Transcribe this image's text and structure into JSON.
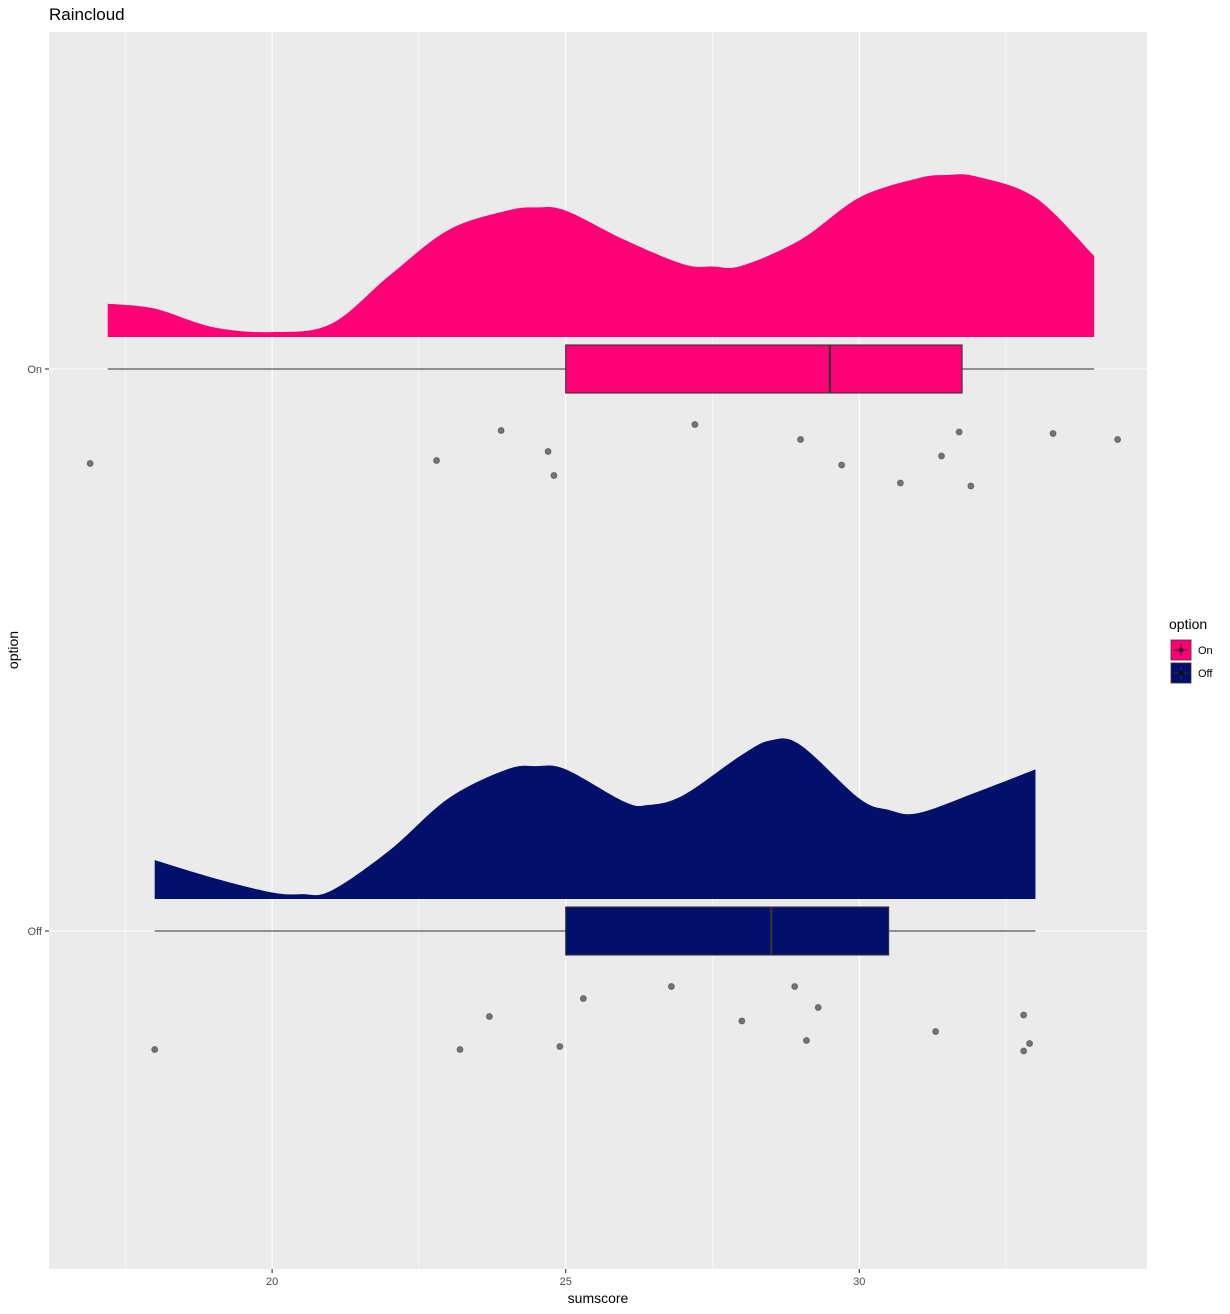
{
  "chart_data": {
    "type": "raincloud",
    "title": "Raincloud",
    "xlabel": "sumscore",
    "ylabel": "option",
    "xlim": [
      16.2,
      34.9
    ],
    "x_ticks": [
      20,
      25,
      30
    ],
    "categories": [
      "Off",
      "On"
    ],
    "grid": true,
    "legend": {
      "title": "option",
      "position": "right",
      "entries": [
        {
          "label": "On",
          "color": "#FF0077"
        },
        {
          "label": "Off",
          "color": "#020F6B"
        }
      ]
    },
    "series": [
      {
        "name": "On",
        "color": "#FF0077",
        "box": {
          "min": 17.2,
          "q1": 25.0,
          "median": 29.5,
          "q3": 31.75,
          "max": 34.0
        },
        "density": {
          "x": [
            17.2,
            18.0,
            19.0,
            20.0,
            21.0,
            22.0,
            23.0,
            24.0,
            24.5,
            25.0,
            26.0,
            27.0,
            27.5,
            28.0,
            29.0,
            30.0,
            31.0,
            31.5,
            32.0,
            33.0,
            34.0
          ],
          "y": [
            0.205,
            0.175,
            0.06,
            0.03,
            0.08,
            0.38,
            0.66,
            0.78,
            0.8,
            0.78,
            0.6,
            0.45,
            0.435,
            0.44,
            0.6,
            0.86,
            0.98,
            1.0,
            0.99,
            0.86,
            0.5
          ]
        },
        "points": [
          {
            "x": 16.9,
            "jitter": 0.63
          },
          {
            "x": 22.8,
            "jitter": 0.61
          },
          {
            "x": 23.9,
            "jitter": 0.41
          },
          {
            "x": 24.7,
            "jitter": 0.55
          },
          {
            "x": 24.8,
            "jitter": 0.71
          },
          {
            "x": 27.2,
            "jitter": 0.37
          },
          {
            "x": 29.0,
            "jitter": 0.47
          },
          {
            "x": 29.7,
            "jitter": 0.64
          },
          {
            "x": 30.7,
            "jitter": 0.76
          },
          {
            "x": 31.4,
            "jitter": 0.58
          },
          {
            "x": 31.7,
            "jitter": 0.42
          },
          {
            "x": 31.9,
            "jitter": 0.78
          },
          {
            "x": 33.3,
            "jitter": 0.43
          },
          {
            "x": 34.4,
            "jitter": 0.47
          }
        ]
      },
      {
        "name": "Off",
        "color": "#020F6B",
        "box": {
          "min": 18.0,
          "q1": 25.0,
          "median": 28.5,
          "q3": 30.5,
          "max": 33.0
        },
        "density": {
          "x": [
            18.0,
            19.0,
            20.0,
            20.5,
            21.0,
            22.0,
            23.0,
            24.0,
            24.5,
            25.0,
            26.0,
            26.4,
            27.0,
            28.0,
            28.5,
            29.0,
            30.0,
            30.5,
            31.0,
            32.0,
            33.0
          ],
          "y": [
            0.24,
            0.13,
            0.04,
            0.03,
            0.05,
            0.3,
            0.62,
            0.8,
            0.82,
            0.8,
            0.6,
            0.58,
            0.64,
            0.89,
            0.98,
            0.95,
            0.62,
            0.55,
            0.53,
            0.66,
            0.8
          ]
        },
        "points": [
          {
            "x": 18.0,
            "jitter": 0.79
          },
          {
            "x": 23.2,
            "jitter": 0.79
          },
          {
            "x": 23.7,
            "jitter": 0.57
          },
          {
            "x": 24.9,
            "jitter": 0.77
          },
          {
            "x": 25.3,
            "jitter": 0.45
          },
          {
            "x": 26.8,
            "jitter": 0.37
          },
          {
            "x": 28.0,
            "jitter": 0.6
          },
          {
            "x": 28.9,
            "jitter": 0.37
          },
          {
            "x": 29.1,
            "jitter": 0.73
          },
          {
            "x": 29.3,
            "jitter": 0.51
          },
          {
            "x": 31.3,
            "jitter": 0.67
          },
          {
            "x": 32.8,
            "jitter": 0.56
          },
          {
            "x": 32.8,
            "jitter": 0.8
          },
          {
            "x": 32.9,
            "jitter": 0.75
          }
        ]
      }
    ]
  }
}
